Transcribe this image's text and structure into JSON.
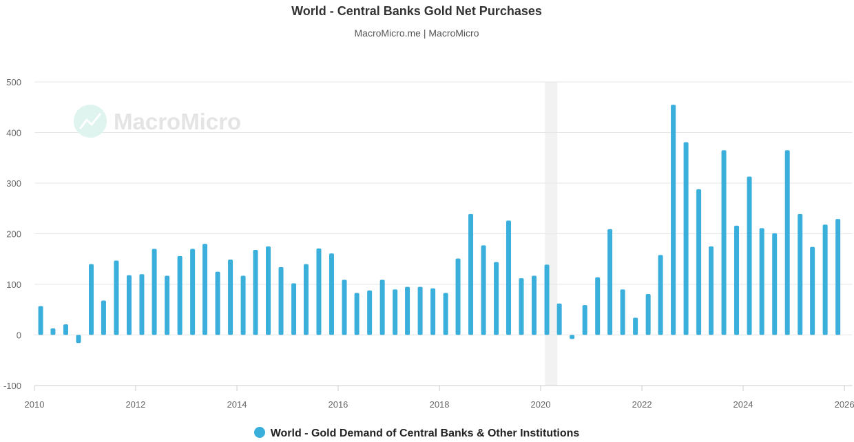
{
  "header": {
    "title": "World - Central Banks Gold Net Purchases",
    "subtitle": "MacroMicro.me | MacroMicro"
  },
  "watermark": {
    "text": "MacroMicro",
    "icon": "macromicro-logo-icon"
  },
  "colors": {
    "bar": "#3aafdc",
    "grid": "#e6e6e6",
    "recession": "#f2f2f2"
  },
  "chart_data": {
    "type": "bar",
    "title": "World - Central Banks Gold Net Purchases",
    "xlabel": "",
    "ylabel": "",
    "ylim": [
      -100,
      500
    ],
    "yticks": [
      -100,
      0,
      100,
      200,
      300,
      400,
      500
    ],
    "xlim": [
      "2010-01-01",
      "2026-03-01"
    ],
    "xticks": [
      "2010",
      "2012",
      "2014",
      "2016",
      "2018",
      "2020",
      "2022",
      "2024",
      "2026"
    ],
    "grid": true,
    "legend_position": "bottom",
    "shaded_periods": [
      {
        "start": "2020-02-01",
        "end": "2020-05-01"
      }
    ],
    "series": [
      {
        "name": "World - Gold Demand of Central Banks & Other Institutions",
        "x": [
          "2010-Q1",
          "2010-Q2",
          "2010-Q3",
          "2010-Q4",
          "2011-Q1",
          "2011-Q2",
          "2011-Q3",
          "2011-Q4",
          "2012-Q1",
          "2012-Q2",
          "2012-Q3",
          "2012-Q4",
          "2013-Q1",
          "2013-Q2",
          "2013-Q3",
          "2013-Q4",
          "2014-Q1",
          "2014-Q2",
          "2014-Q3",
          "2014-Q4",
          "2015-Q1",
          "2015-Q2",
          "2015-Q3",
          "2015-Q4",
          "2016-Q1",
          "2016-Q2",
          "2016-Q3",
          "2016-Q4",
          "2017-Q1",
          "2017-Q2",
          "2017-Q3",
          "2017-Q4",
          "2018-Q1",
          "2018-Q2",
          "2018-Q3",
          "2018-Q4",
          "2019-Q1",
          "2019-Q2",
          "2019-Q3",
          "2019-Q4",
          "2020-Q1",
          "2020-Q2",
          "2020-Q3",
          "2020-Q4",
          "2021-Q1",
          "2021-Q2",
          "2021-Q3",
          "2021-Q4",
          "2022-Q1",
          "2022-Q2",
          "2022-Q3",
          "2022-Q4",
          "2023-Q1",
          "2023-Q2",
          "2023-Q3",
          "2023-Q4",
          "2024-Q1",
          "2024-Q2",
          "2024-Q3",
          "2024-Q4",
          "2025-Q1",
          "2025-Q2",
          "2025-Q3",
          "2025-Q4"
        ],
        "values": [
          57,
          13,
          21,
          -16,
          140,
          68,
          147,
          118,
          120,
          170,
          117,
          156,
          170,
          180,
          125,
          149,
          117,
          168,
          175,
          134,
          102,
          140,
          171,
          161,
          109,
          83,
          88,
          109,
          90,
          95,
          95,
          92,
          83,
          151,
          239,
          177,
          144,
          226,
          112,
          117,
          139,
          62,
          -8,
          59,
          114,
          209,
          90,
          34,
          81,
          158,
          455,
          381,
          288,
          175,
          365,
          216,
          313,
          211,
          201,
          365,
          239,
          174,
          218,
          229
        ]
      }
    ]
  }
}
